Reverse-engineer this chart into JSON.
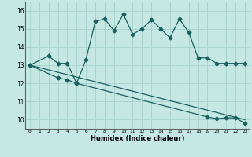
{
  "xlabel": "Humidex (Indice chaleur)",
  "background_color": "#c5e8e5",
  "grid_color": "#aad4d0",
  "line_color": "#1a6060",
  "xlim": [
    -0.5,
    23.5
  ],
  "ylim": [
    9.5,
    16.5
  ],
  "yticks": [
    10,
    11,
    12,
    13,
    14,
    15,
    16
  ],
  "xticks": [
    0,
    1,
    2,
    3,
    4,
    5,
    6,
    7,
    8,
    9,
    10,
    11,
    12,
    13,
    14,
    15,
    16,
    17,
    18,
    19,
    20,
    21,
    22,
    23
  ],
  "curve1_x": [
    0,
    2,
    3,
    4,
    5,
    6,
    7,
    8,
    9,
    10,
    11,
    12,
    13,
    14,
    15,
    16,
    17,
    18,
    19,
    20,
    21,
    22,
    23
  ],
  "curve1_y": [
    13.0,
    13.5,
    13.1,
    13.1,
    12.0,
    13.3,
    15.4,
    15.55,
    14.9,
    15.8,
    14.7,
    15.0,
    15.5,
    15.0,
    14.5,
    15.55,
    14.8,
    13.4,
    13.4,
    13.1,
    13.1,
    13.1,
    13.1
  ],
  "curve2_x": [
    0,
    3,
    4,
    5,
    19,
    20,
    21,
    22,
    23
  ],
  "curve2_y": [
    13.0,
    12.3,
    12.2,
    12.0,
    10.15,
    10.05,
    10.1,
    10.1,
    9.8
  ],
  "curve3_x": [
    0,
    23
  ],
  "curve3_y": [
    13.0,
    10.0
  ],
  "marker": "D",
  "markersize": 2.5
}
